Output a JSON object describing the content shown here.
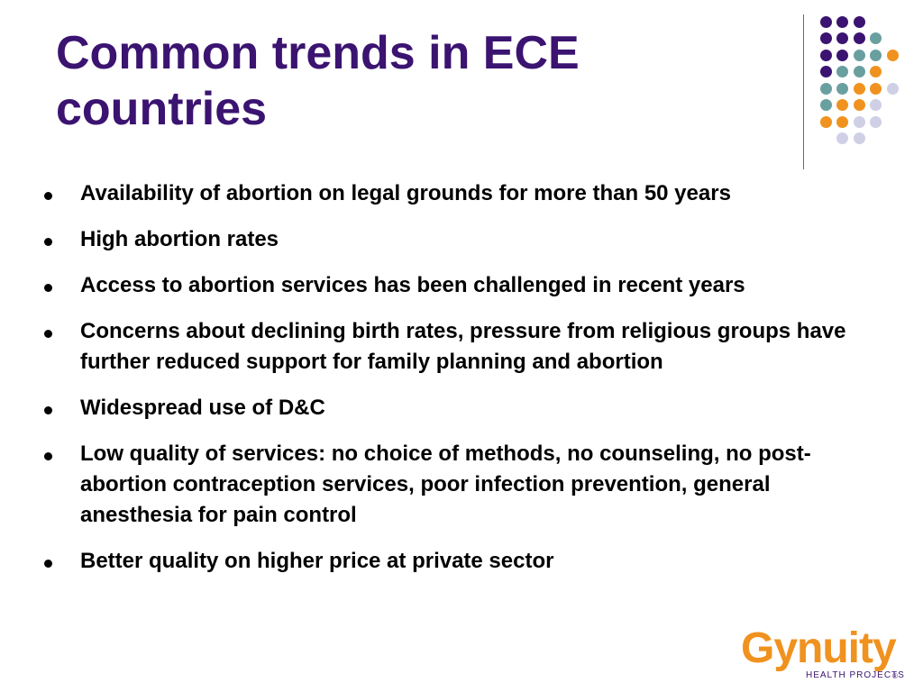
{
  "title_lines": [
    "Common trends in ECE",
    "countries"
  ],
  "bullets": [
    "Availability of abortion on legal grounds for more than 50 years",
    "High abortion rates",
    "Access to abortion services has been challenged in recent years",
    "Concerns about declining birth rates, pressure from religious groups have further reduced support for family planning and abortion",
    "Widespread use of D&C",
    "Low quality of services: no choice of methods, no counseling, no post-abortion contraception services, poor infection prevention, general anesthesia for pain control",
    "Better quality on higher price at private sector"
  ],
  "logo": {
    "name": "Gynuity",
    "subtitle": "HEALTH PROJECTS",
    "mark": "®"
  },
  "colors": {
    "title": "#3b1370",
    "purple": "#3b1370",
    "teal": "#6a9fa0",
    "orange": "#f0921f",
    "lavender": "#cfd0e6"
  },
  "decoration": {
    "dot_rows": [
      [
        "purple",
        "purple",
        "purple"
      ],
      [
        "purple",
        "purple",
        "purple",
        "teal"
      ],
      [
        "purple",
        "purple",
        "teal",
        "teal",
        "orange"
      ],
      [
        "purple",
        "teal",
        "teal",
        "orange"
      ],
      [
        "teal",
        "teal",
        "orange",
        "orange",
        "lavender"
      ],
      [
        "teal",
        "orange",
        "orange",
        "lavender"
      ],
      [
        "orange",
        "orange",
        "lavender",
        "lavender"
      ],
      [
        "lavender",
        "lavender"
      ]
    ]
  }
}
